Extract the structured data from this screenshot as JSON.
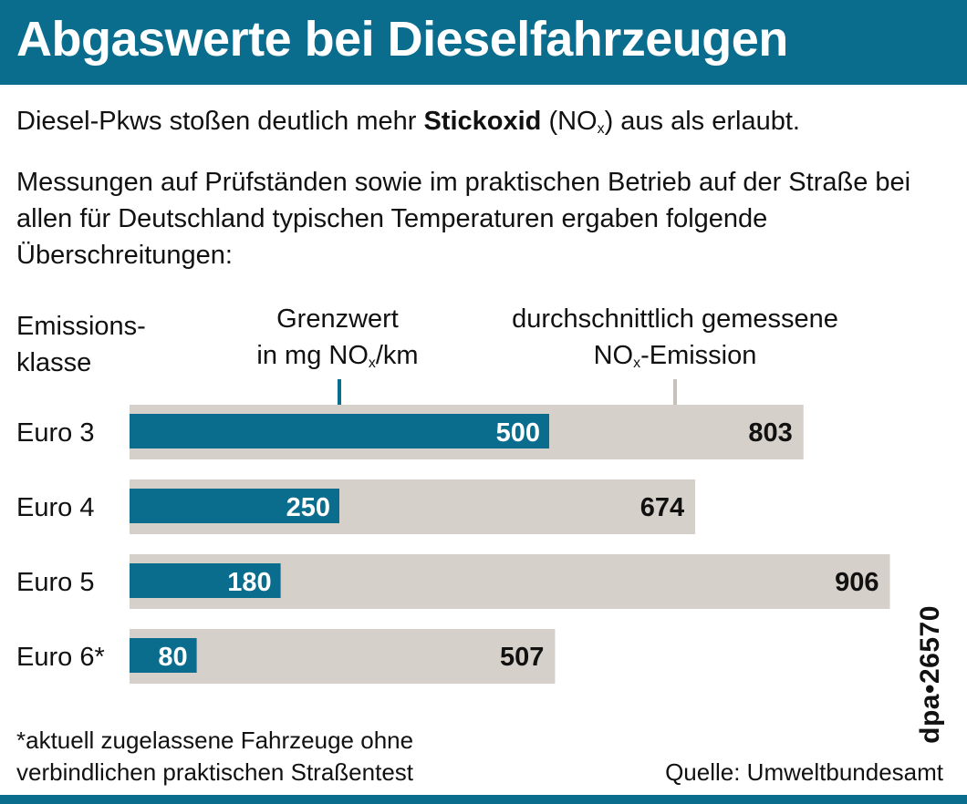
{
  "title": "Abgaswerte bei Dieselfahrzeugen",
  "intro": {
    "pre": "Diesel-Pkws stoßen deutlich mehr ",
    "bold": "Stickoxid",
    "mid": " (NO",
    "sub": "x",
    "post": ") aus als erlaubt."
  },
  "description": "Messungen auf Prüfständen sowie im praktischen Betrieb auf der Straße bei allen für Deutschland typischen Temperaturen ergaben folgende Überschreitungen:",
  "labels": {
    "emission_line1": "Emissions-",
    "emission_line2": "klasse",
    "limit_line1": "Grenzwert",
    "limit_line2_pre": "in mg NO",
    "limit_line2_sub": "x",
    "limit_line2_post": "/km",
    "measured_line1": "durchschnittlich gemessene",
    "measured_line2_pre": "NO",
    "measured_line2_sub": "x",
    "measured_line2_post": "-Emission"
  },
  "chart_data": {
    "type": "bar",
    "orientation": "horizontal",
    "categories": [
      "Euro 3",
      "Euro 4",
      "Euro 5",
      "Euro 6*"
    ],
    "series": [
      {
        "name": "Grenzwert in mg NOx/km",
        "values": [
          500,
          250,
          180,
          80
        ],
        "color": "#0a6d8e"
      },
      {
        "name": "durchschnittlich gemessene NOx-Emission",
        "values": [
          803,
          674,
          906,
          507
        ],
        "color": "#d6d0ca"
      }
    ]
  },
  "footnote_line1": "*aktuell zugelassene Fahrzeuge ohne",
  "footnote_line2": "verbindlichen praktischen Straßentest",
  "source": "Quelle: Umweltbundesamt",
  "badge": "dpa•26570",
  "colors": {
    "accent": "#0a6d8e",
    "bar_background": "#d6d0ca",
    "tick": "#c8c1ba"
  }
}
